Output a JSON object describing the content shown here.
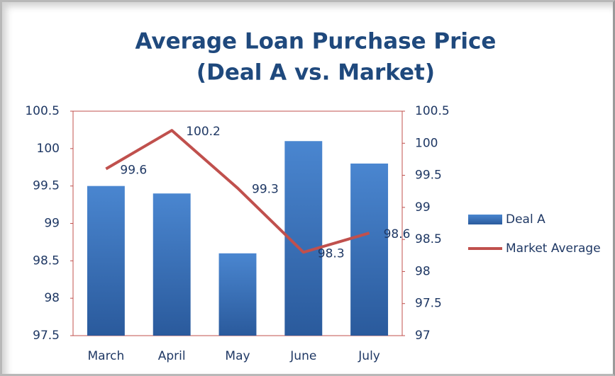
{
  "chart_data": {
    "type": "bar",
    "title": "Average Loan Purchase Price",
    "subtitle": "(Deal A vs. Market)",
    "categories": [
      "March",
      "April",
      "May",
      "June",
      "July"
    ],
    "series": [
      {
        "name": "Deal A",
        "type": "bar",
        "color": "#3d72c0",
        "values": [
          99.5,
          99.4,
          98.6,
          100.1,
          99.8
        ]
      },
      {
        "name": "Market Average",
        "type": "line",
        "axis": "y2",
        "color": "#c0504d",
        "values": [
          99.6,
          100.2,
          99.3,
          98.3,
          98.6
        ]
      }
    ],
    "ylim": [
      97.5,
      100.5
    ],
    "yticks": [
      97.5,
      98,
      98.5,
      99,
      99.5,
      100,
      100.5
    ],
    "y2lim": [
      97,
      100.5
    ],
    "y2ticks": [
      97,
      97.5,
      98,
      98.5,
      99,
      99.5,
      100,
      100.5
    ],
    "legend": "right"
  }
}
